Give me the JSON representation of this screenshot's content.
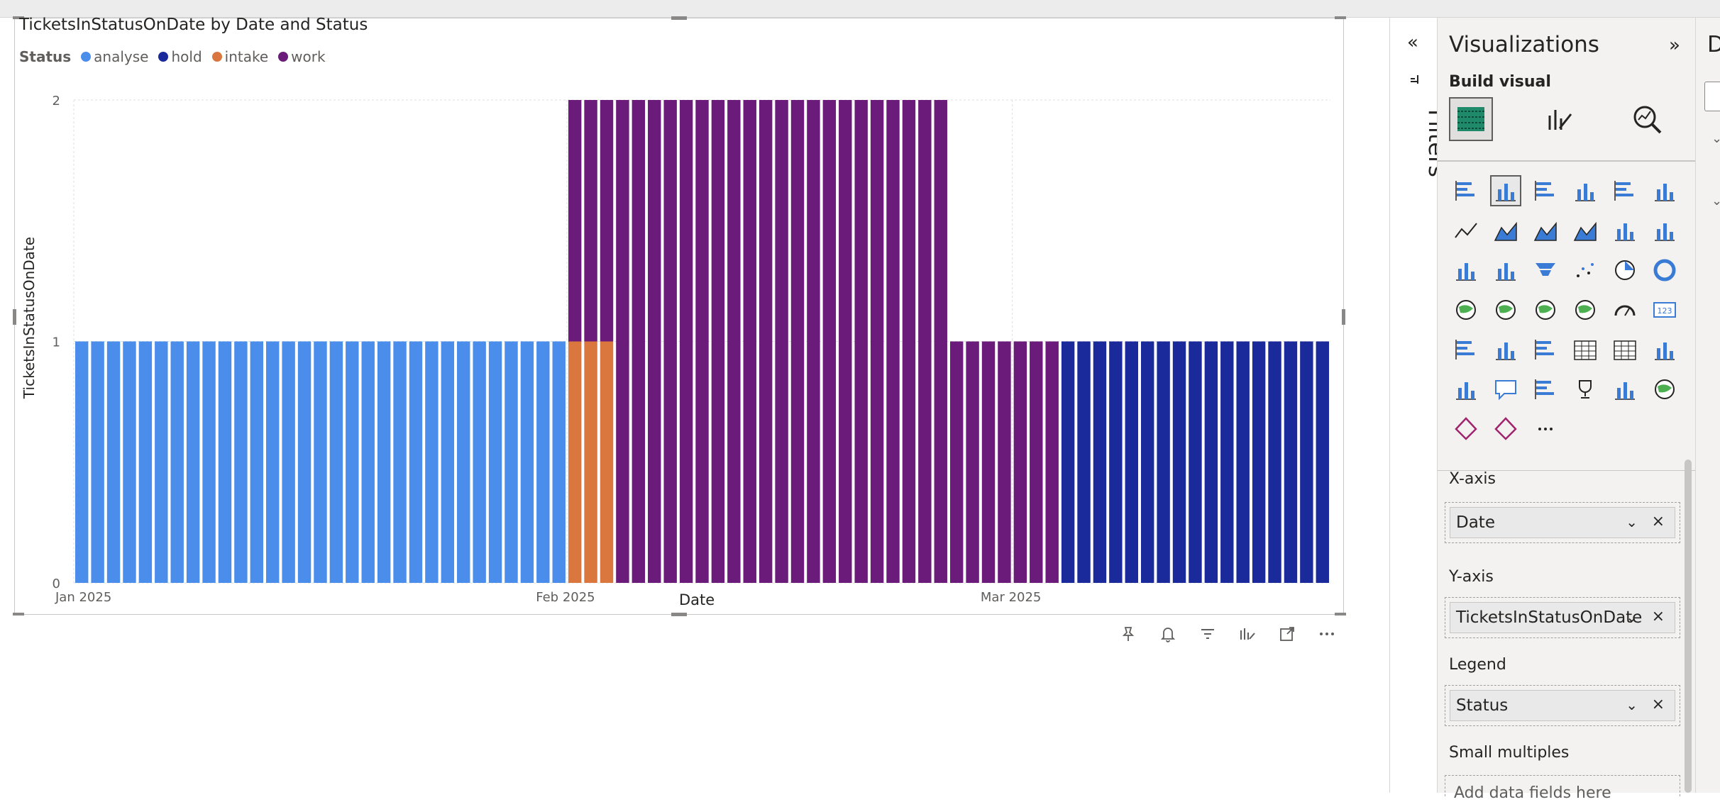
{
  "visual": {
    "title": "TicketsInStatusOnDate by Date and Status",
    "legend_title": "Status",
    "y_axis_label": "TicketsInStatusOnDate",
    "x_axis_label": "Date"
  },
  "legend": [
    {
      "label": "analyse",
      "color": "#4A8DEB"
    },
    {
      "label": "hold",
      "color": "#1A2A9B"
    },
    {
      "label": "intake",
      "color": "#D9773E"
    },
    {
      "label": "work",
      "color": "#6B1B7A"
    }
  ],
  "filters_pane": {
    "label": "Filters"
  },
  "viz_pane": {
    "title": "Visualizations",
    "build_visual": "Build visual",
    "wells": {
      "x_axis": {
        "label": "X-axis",
        "field": "Date"
      },
      "y_axis": {
        "label": "Y-axis",
        "field": "TicketsInStatusOnDate"
      },
      "legend": {
        "label": "Legend",
        "field": "Status"
      },
      "small_multiples": {
        "label": "Small multiples",
        "placeholder": "Add data fields here"
      }
    },
    "more_label": "···"
  },
  "data_pane": {
    "title_partial": "D"
  },
  "icons": {
    "filters_collapse": "double-chevron-left-icon",
    "viz_expand": "double-chevron-right-icon",
    "toolbar": [
      "pin-icon",
      "bell-icon",
      "filter-icon",
      "format-icon",
      "focus-mode-icon",
      "more-options-icon"
    ]
  },
  "chart_data": {
    "type": "bar",
    "stacked": true,
    "title": "TicketsInStatusOnDate by Date and Status",
    "xlabel": "Date",
    "ylabel": "TicketsInStatusOnDate",
    "ylim": [
      0,
      2
    ],
    "y_ticks": [
      "0",
      "1",
      "2"
    ],
    "x_ticks": [
      "Jan 2025",
      "Feb 2025",
      "Mar 2025"
    ],
    "x_start": "2025-01-01",
    "x_end": "2025-03-20",
    "grid": true,
    "legend_position": "top-left",
    "series": [
      {
        "name": "analyse",
        "color": "#4A8DEB",
        "segments": [
          {
            "from": "2025-01-01",
            "to": "2025-01-31",
            "value": 1
          }
        ]
      },
      {
        "name": "intake",
        "color": "#D9773E",
        "segments": [
          {
            "from": "2025-02-01",
            "to": "2025-02-03",
            "value": 1
          }
        ]
      },
      {
        "name": "work",
        "color": "#6B1B7A",
        "segments": [
          {
            "from": "2025-02-01",
            "to": "2025-02-03",
            "value": 1
          },
          {
            "from": "2025-02-04",
            "to": "2025-02-24",
            "value": 2
          },
          {
            "from": "2025-02-25",
            "to": "2025-03-03",
            "value": 1
          }
        ]
      },
      {
        "name": "hold",
        "color": "#1A2A9B",
        "segments": [
          {
            "from": "2025-03-04",
            "to": "2025-03-20",
            "value": 1
          }
        ]
      }
    ]
  }
}
